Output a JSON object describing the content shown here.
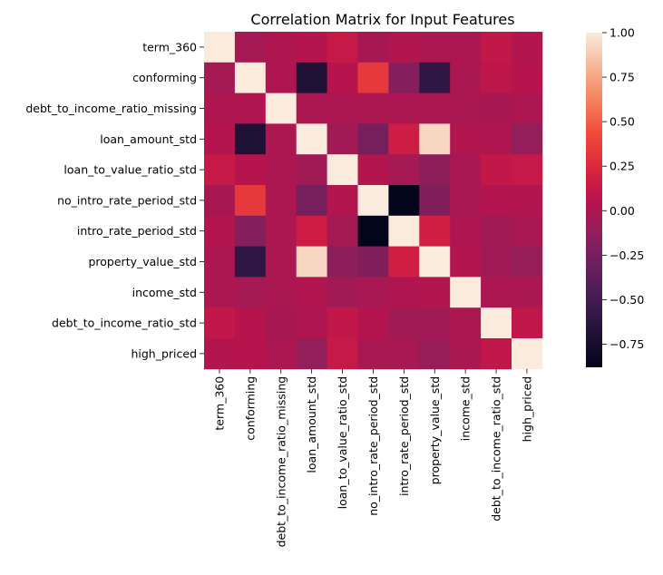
{
  "chart_data": {
    "type": "heatmap",
    "title": "Correlation Matrix for Input Features",
    "row_labels": [
      "term_360",
      "conforming",
      "debt_to_income_ratio_missing",
      "loan_amount_std",
      "loan_to_value_ratio_std",
      "no_intro_rate_period_std",
      "intro_rate_period_std",
      "property_value_std",
      "income_std",
      "debt_to_income_ratio_std",
      "high_priced"
    ],
    "col_labels": [
      "term_360",
      "conforming",
      "debt_to_income_ratio_missing",
      "loan_amount_std",
      "loan_to_value_ratio_std",
      "no_intro_rate_period_std",
      "intro_rate_period_std",
      "property_value_std",
      "income_std",
      "debt_to_income_ratio_std",
      "high_priced"
    ],
    "values": [
      [
        1.0,
        -0.03,
        0.02,
        0.05,
        0.13,
        -0.02,
        0.03,
        0.01,
        0.01,
        0.11,
        0.04
      ],
      [
        -0.03,
        1.0,
        0.02,
        -0.7,
        0.06,
        0.34,
        -0.18,
        -0.6,
        0.0,
        0.09,
        0.06
      ],
      [
        0.02,
        0.02,
        1.0,
        0.01,
        0.01,
        0.01,
        0.01,
        0.01,
        0.0,
        -0.02,
        0.01
      ],
      [
        0.05,
        -0.7,
        0.01,
        1.0,
        -0.05,
        -0.25,
        0.17,
        0.93,
        0.03,
        0.02,
        -0.12
      ],
      [
        0.13,
        0.06,
        0.01,
        -0.05,
        1.0,
        0.04,
        -0.03,
        -0.15,
        -0.01,
        0.11,
        0.13
      ],
      [
        -0.02,
        0.34,
        0.01,
        -0.25,
        0.04,
        1.0,
        -0.88,
        -0.2,
        -0.01,
        0.05,
        0.03
      ],
      [
        0.03,
        -0.18,
        0.01,
        0.17,
        -0.03,
        -0.88,
        1.0,
        0.18,
        0.02,
        -0.05,
        -0.01
      ],
      [
        0.01,
        -0.6,
        0.01,
        0.93,
        -0.15,
        -0.2,
        0.18,
        1.0,
        0.03,
        -0.05,
        -0.1
      ],
      [
        0.01,
        -0.03,
        0.0,
        0.03,
        -0.05,
        -0.01,
        0.02,
        0.03,
        1.0,
        0.01,
        0.0
      ],
      [
        0.11,
        0.06,
        -0.02,
        0.02,
        0.11,
        0.05,
        -0.05,
        -0.05,
        0.01,
        1.0,
        0.1
      ],
      [
        0.04,
        0.06,
        0.01,
        -0.12,
        0.13,
        -0.01,
        -0.01,
        -0.1,
        0.0,
        0.1,
        1.0
      ]
    ],
    "colorbar": {
      "range": [
        -0.88,
        1.0
      ],
      "ticks": [
        -0.75,
        -0.5,
        -0.25,
        0.0,
        0.25,
        0.5,
        0.75,
        1.0
      ],
      "tick_labels": [
        "−0.75",
        "−0.50",
        "−0.25",
        "0.00",
        "0.25",
        "0.50",
        "0.75",
        "1.00"
      ]
    },
    "colormap": "rocket",
    "grid": false,
    "legend": "colorbar right"
  }
}
